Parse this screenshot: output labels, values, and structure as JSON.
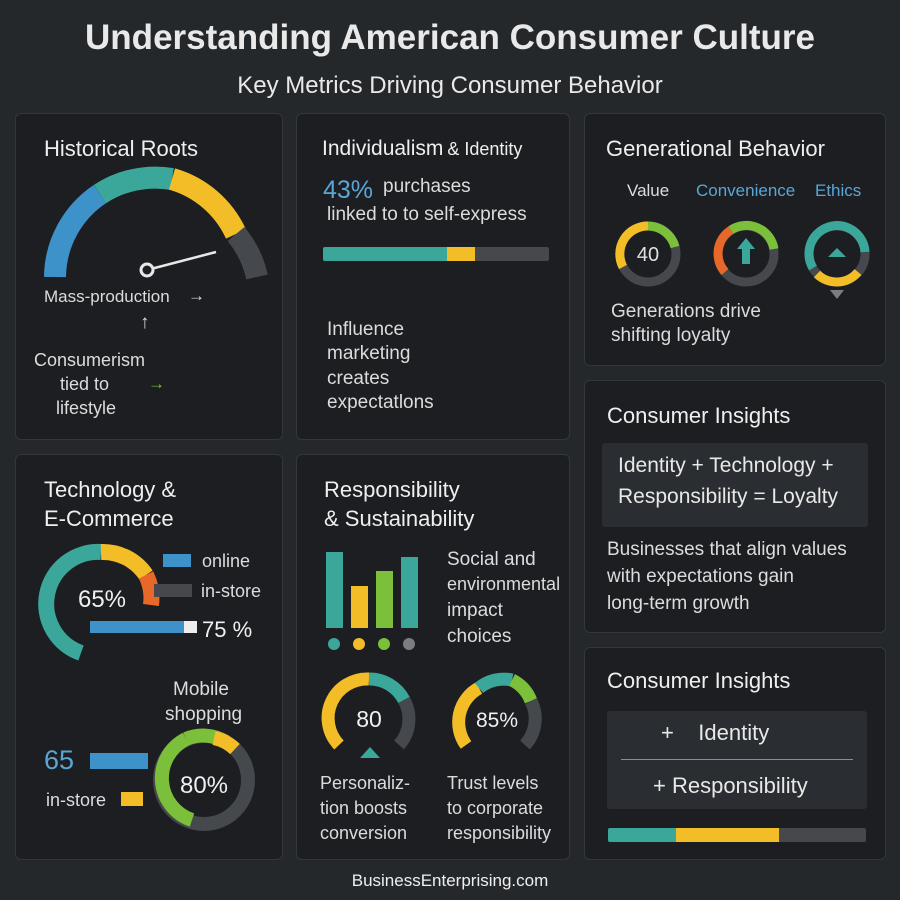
{
  "header": {
    "title": "Understanding American Consumer Culture",
    "subtitle": "Key Metrics Driving Consumer Behavior"
  },
  "colors": {
    "teal": "#3aa79a",
    "yellow": "#f2bd27",
    "blue": "#3d93c9",
    "green": "#7cbf3a",
    "orange": "#e8682a",
    "gray": "#45494d"
  },
  "historical": {
    "title": "Historical Roots",
    "mass_production": "Mass-production",
    "consumerism": "Consumerism",
    "tied_to": "tied to",
    "lifestyle": "lifestyle"
  },
  "individualism": {
    "title_main": "Individualism",
    "title_amp": "& Identity",
    "stat": "43%",
    "stat_text_1": "purchases",
    "stat_text_2": "linked to to self-express",
    "progress": 0.43,
    "influence": [
      "Influence",
      "marketing",
      "creates",
      "expectatlons"
    ]
  },
  "generational": {
    "title": "Generational Behavior",
    "labels": [
      "Value",
      "Convenience",
      "Ethics"
    ],
    "gauge_value": "40",
    "caption": [
      "Generations drive",
      "shifting loyalty"
    ]
  },
  "technology": {
    "title": [
      "Technology &",
      "E-Commerce"
    ],
    "gauge1": "65%",
    "legend_online": "online",
    "legend_instore": "in-store",
    "bar_value": "75 %",
    "mobile": [
      "Mobile",
      "shopping"
    ],
    "side_value": "65",
    "side_label": "in-store",
    "gauge2": "80%"
  },
  "responsibility": {
    "title": [
      "Responsibility",
      "& Sustainability"
    ],
    "impact": [
      "Social and",
      "environmental",
      "impact",
      "choices"
    ],
    "gauge1": "80",
    "gauge2": "85%",
    "caption1": [
      "Personaliz-",
      "tion boosts",
      "conversion"
    ],
    "caption2": [
      "Trust levels",
      "to corporate",
      "responsibility"
    ]
  },
  "insights1": {
    "title": "Consumer Insights",
    "formula": [
      "Identity + Technology +",
      "Responsibility = Loyalty"
    ],
    "body": [
      "Businesses that align values",
      "with expectations gain",
      "long-term growth"
    ]
  },
  "insights2": {
    "title": "Consumer Insights",
    "items": [
      "+    Identity",
      "+ Responsibility"
    ]
  },
  "footer": "BusinessEnterprising.com"
}
